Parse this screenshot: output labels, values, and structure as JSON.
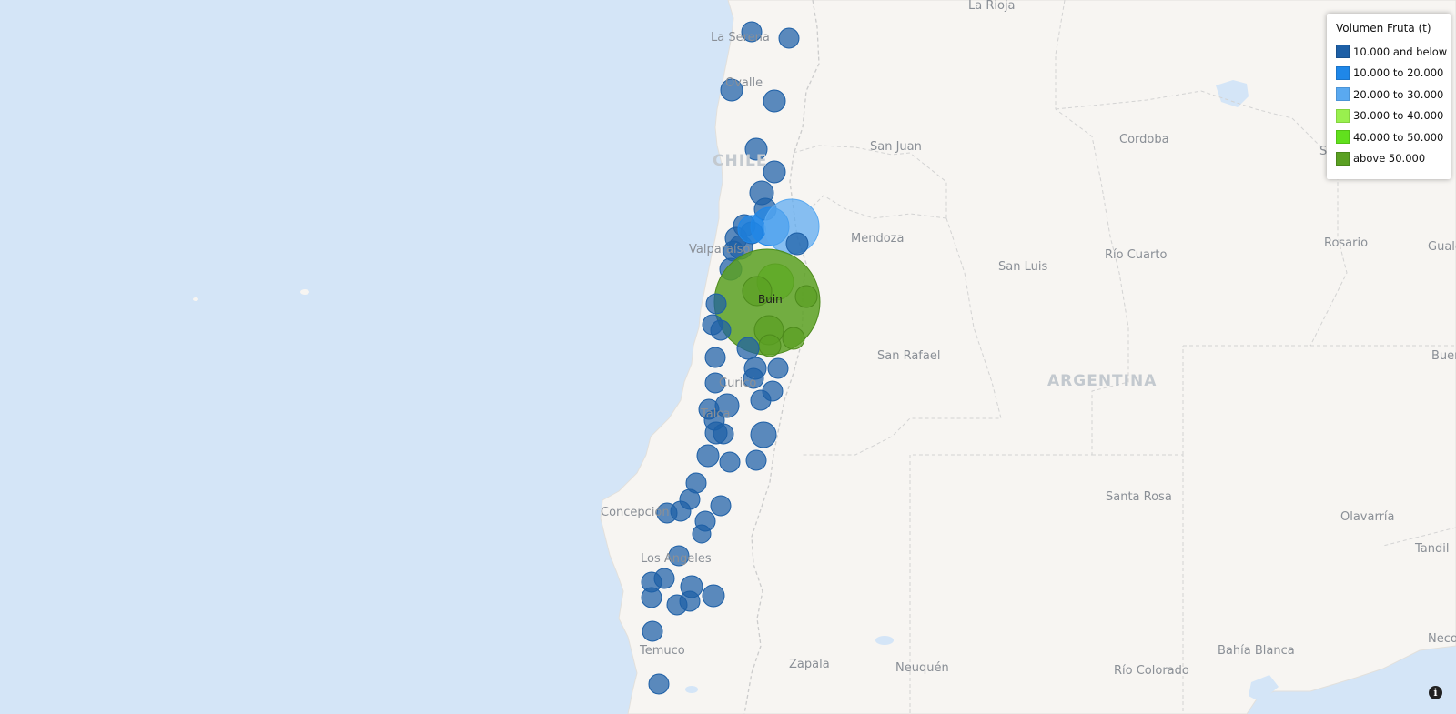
{
  "map": {
    "place_labels": {
      "la_rioja": "La Rioja",
      "la_serena": "La Serena",
      "ovalle": "Ovalle",
      "chile": "CHILE",
      "san_juan": "San Juan",
      "cordoba": "Cordoba",
      "mendoza": "Mendoza",
      "valparaiso": "Valparaíso",
      "san_luis": "San Luis",
      "rio_cuarto": "Río Cuarto",
      "rosario": "Rosario",
      "gualeguaychu": "Gualeguaychú",
      "buin": "Buin",
      "san_rafael": "San Rafael",
      "buenos_aires": "Buenos Aires",
      "argentina": "ARGENTINA",
      "curico": "Curicó",
      "talca": "Talca",
      "concepcion": "Concepción",
      "santa_rosa": "Santa Rosa",
      "olavarria": "Olavarría",
      "los_angeles": "Los Angeles",
      "tandil": "Tandil",
      "temuco": "Temuco",
      "zapala": "Zapala",
      "neuquen": "Neuquén",
      "bahia_blanca": "Bahía Blanca",
      "rio_colorado": "Río Colorado",
      "necochea": "Necochea",
      "san_partial": "Sa"
    },
    "colors": {
      "ocean": "#d4e5f7",
      "land": "#f7f5f2",
      "border": "#cfcfcf",
      "class1": "#1d5fa6",
      "class2": "#1f87e8",
      "class3": "#5aa9f0",
      "class4": "#99f04e",
      "class5": "#61e01d",
      "class6": "#5aa022"
    }
  },
  "legend": {
    "title": "Volumen Fruta (t)",
    "items": [
      {
        "label": "10.000 and below",
        "color": "#1d5fa6"
      },
      {
        "label": "10.000 to 20.000",
        "color": "#1f87e8"
      },
      {
        "label": "20.000 to 30.000",
        "color": "#5aa9f0"
      },
      {
        "label": "30.000 to 40.000",
        "color": "#99f04e"
      },
      {
        "label": "40.000 to 50.000",
        "color": "#61e01d"
      },
      {
        "label": "above 50.000",
        "color": "#5aa022"
      }
    ]
  },
  "info_button": {
    "glyph": "i"
  }
}
